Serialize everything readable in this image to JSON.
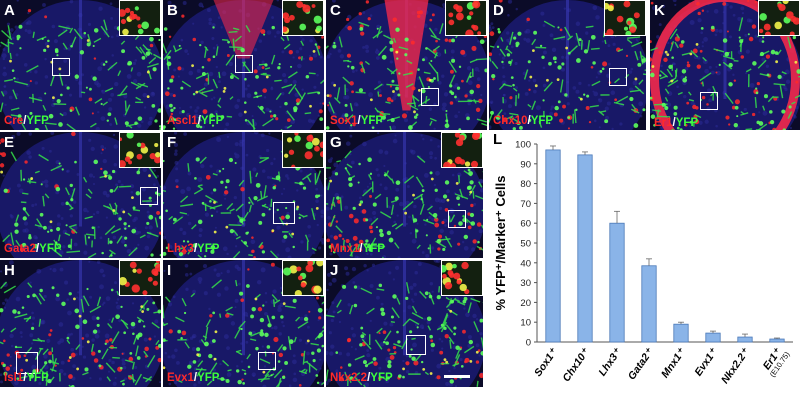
{
  "panels": [
    {
      "label": "A",
      "marker": "Cre",
      "yfp": "YFP"
    },
    {
      "label": "B",
      "marker": "Ascl1",
      "yfp": "YFP"
    },
    {
      "label": "C",
      "marker": "Sox1",
      "yfp": "YFP"
    },
    {
      "label": "D",
      "marker": "Chx10",
      "yfp": "YFP"
    },
    {
      "label": "K",
      "marker": "Er1",
      "yfp": "YFP"
    },
    {
      "label": "E",
      "marker": "Gata2",
      "yfp": "YFP"
    },
    {
      "label": "F",
      "marker": "Lhx3",
      "yfp": "YFP"
    },
    {
      "label": "G",
      "marker": "Mnx1",
      "yfp": "YFP"
    },
    {
      "label": "H",
      "marker": "Isl1",
      "yfp": "YFP"
    },
    {
      "label": "I",
      "marker": "Evx1",
      "yfp": "YFP"
    },
    {
      "label": "J",
      "marker": "Nkx2.2",
      "yfp": "YFP"
    }
  ],
  "separator": "/",
  "colors": {
    "marker": "#ff2a2a",
    "yfp": "#3cff3c",
    "dapi": "#1a1a6e",
    "bar": "#8ab4e8"
  },
  "chart_data": {
    "type": "bar",
    "panel_label": "L",
    "ylabel": "% YFP⁺/Marker⁺ Cells",
    "ylim": [
      0,
      100
    ],
    "yticks": [
      0,
      10,
      20,
      30,
      40,
      50,
      60,
      70,
      80,
      90,
      100
    ],
    "categories": [
      "Sox1⁺",
      "Chx10⁺",
      "Lhx3⁺",
      "Gata2⁺",
      "Mnx1⁺",
      "Evx1⁺",
      "Nkx2.2⁺",
      "Er1⁺"
    ],
    "category_notes": [
      "",
      "",
      "",
      "",
      "",
      "",
      "",
      "(E10.75)"
    ],
    "values": [
      97,
      94.5,
      60,
      38.5,
      9,
      4.5,
      2.5,
      1.5
    ],
    "errors": [
      2,
      1.5,
      6,
      3.5,
      1,
      1,
      1.5,
      0.5
    ],
    "grid": false
  }
}
